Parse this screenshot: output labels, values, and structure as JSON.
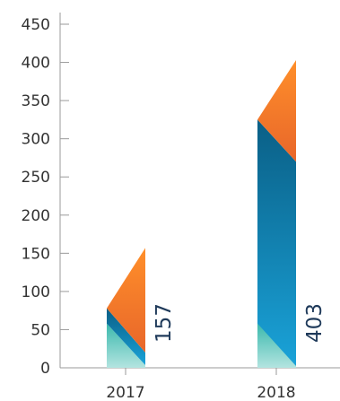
{
  "chart_data": {
    "type": "bar",
    "categories": [
      "2017",
      "2018"
    ],
    "values": [
      157,
      403
    ],
    "data_labels": [
      "157",
      "403"
    ],
    "ylim": [
      0,
      450
    ],
    "yticks": [
      "0",
      "50",
      "100",
      "150",
      "200",
      "250",
      "300",
      "350",
      "400",
      "450"
    ],
    "title": "",
    "xlabel": "",
    "ylabel": "",
    "grid": false,
    "legend": "none",
    "colors": {
      "axis": "#9a9a9a",
      "orange_top": "#ff8f2a",
      "orange_bottom": "#e8662a",
      "blue_top": "#0a5f86",
      "blue_bottom": "#1aa3d9",
      "teal_top": "#3bb9ad",
      "teal_bottom": "#b3e4e0",
      "label": "#1f3a5a"
    }
  }
}
